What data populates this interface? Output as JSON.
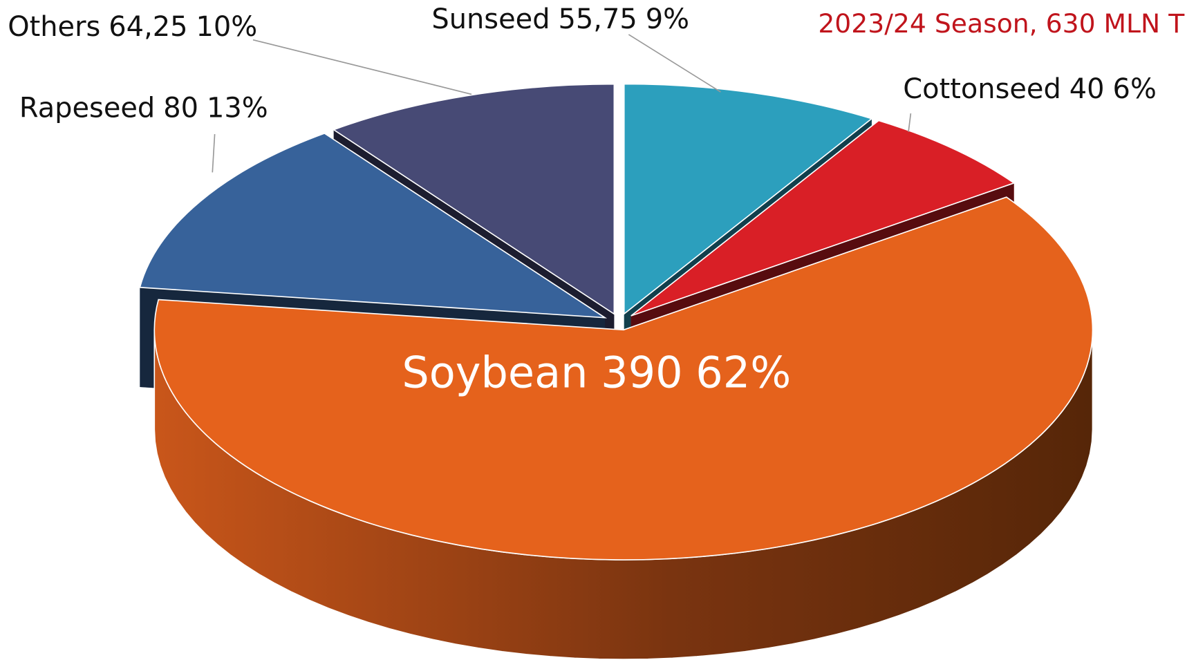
{
  "chart_data": {
    "type": "pie3d",
    "title": "2023/24 Season, 630 MLN T",
    "categories": [
      "Sunseed",
      "Cottonseed",
      "Soybean",
      "Rapeseed",
      "Others"
    ],
    "values": [
      55.75,
      40,
      390,
      80,
      64.25
    ],
    "value_labels": [
      "55,75",
      "40",
      "390",
      "80",
      "64,25"
    ],
    "percents": [
      9,
      6,
      62,
      13,
      10
    ],
    "percent_labels": [
      "9%",
      "6%",
      "62%",
      "13%",
      "10%"
    ],
    "colors": [
      "#2c9fbd",
      "#d91f26",
      "#e5621c",
      "#37629a",
      "#474a75"
    ]
  }
}
